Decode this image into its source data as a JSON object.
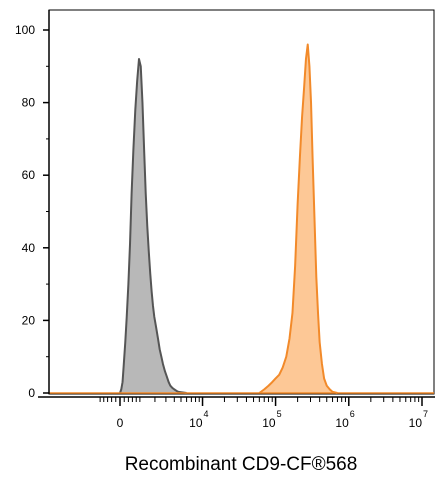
{
  "chart_data": {
    "type": "area",
    "title": "",
    "xlabel": "Recombinant CD9-CF®568",
    "ylabel": "",
    "xscale": "biexponential",
    "ylim": [
      0,
      100
    ],
    "grid": false,
    "legend": "none",
    "y_ticks": [
      {
        "value": 0,
        "label": "0"
      },
      {
        "value": 20,
        "label": "20"
      },
      {
        "value": 40,
        "label": "40"
      },
      {
        "value": 60,
        "label": "60"
      },
      {
        "value": 80,
        "label": "80"
      },
      {
        "value": 100,
        "label": "100"
      }
    ],
    "x_ticks": [
      {
        "value": 0,
        "base": "0",
        "exp": ""
      },
      {
        "value": 10000,
        "base": "10",
        "exp": "4"
      },
      {
        "value": 100000,
        "base": "10",
        "exp": "5"
      },
      {
        "value": 1000000,
        "base": "10",
        "exp": "6"
      },
      {
        "value": 10000000,
        "base": "10",
        "exp": "7"
      }
    ],
    "series": [
      {
        "color": "#555555",
        "fill": "#b8b8b8",
        "x": [
          0,
          60,
          120,
          180,
          250,
          320,
          400,
          480,
          560,
          650,
          750,
          850,
          950,
          1050,
          1150,
          1250,
          1350,
          1450,
          1550,
          1650,
          1750,
          1850,
          1950,
          2100,
          2250,
          2400,
          2550,
          2700,
          2900,
          3100,
          3300,
          3500,
          3750,
          4000,
          4300,
          4600,
          5000,
          5500,
          6000
        ],
        "y": [
          0,
          1,
          3,
          8,
          14,
          21,
          30,
          41,
          55,
          67,
          78,
          86,
          92,
          90,
          80,
          67,
          55,
          46,
          39,
          33,
          28,
          24,
          21,
          18,
          15,
          12,
          10,
          8,
          6,
          4.5,
          3,
          2,
          1.4,
          1,
          0.6,
          0.3,
          0.2,
          0.1,
          0
        ]
      },
      {
        "color": "#f28a2a",
        "fill": "#fdc896",
        "x": [
          60000,
          70000,
          80000,
          90000,
          100000,
          112000,
          125000,
          140000,
          155000,
          170000,
          185000,
          200000,
          215000,
          230000,
          245000,
          260000,
          275000,
          290000,
          305000,
          320000,
          340000,
          360000,
          380000,
          400000,
          430000,
          460000,
          500000,
          550000,
          600000,
          700000
        ],
        "y": [
          0,
          1,
          2,
          3,
          4,
          5,
          7,
          10,
          15,
          22,
          35,
          52,
          65,
          76,
          84,
          92,
          96,
          90,
          80,
          65,
          48,
          32,
          22,
          14,
          8,
          4,
          2,
          1,
          0.3,
          0
        ]
      }
    ]
  }
}
